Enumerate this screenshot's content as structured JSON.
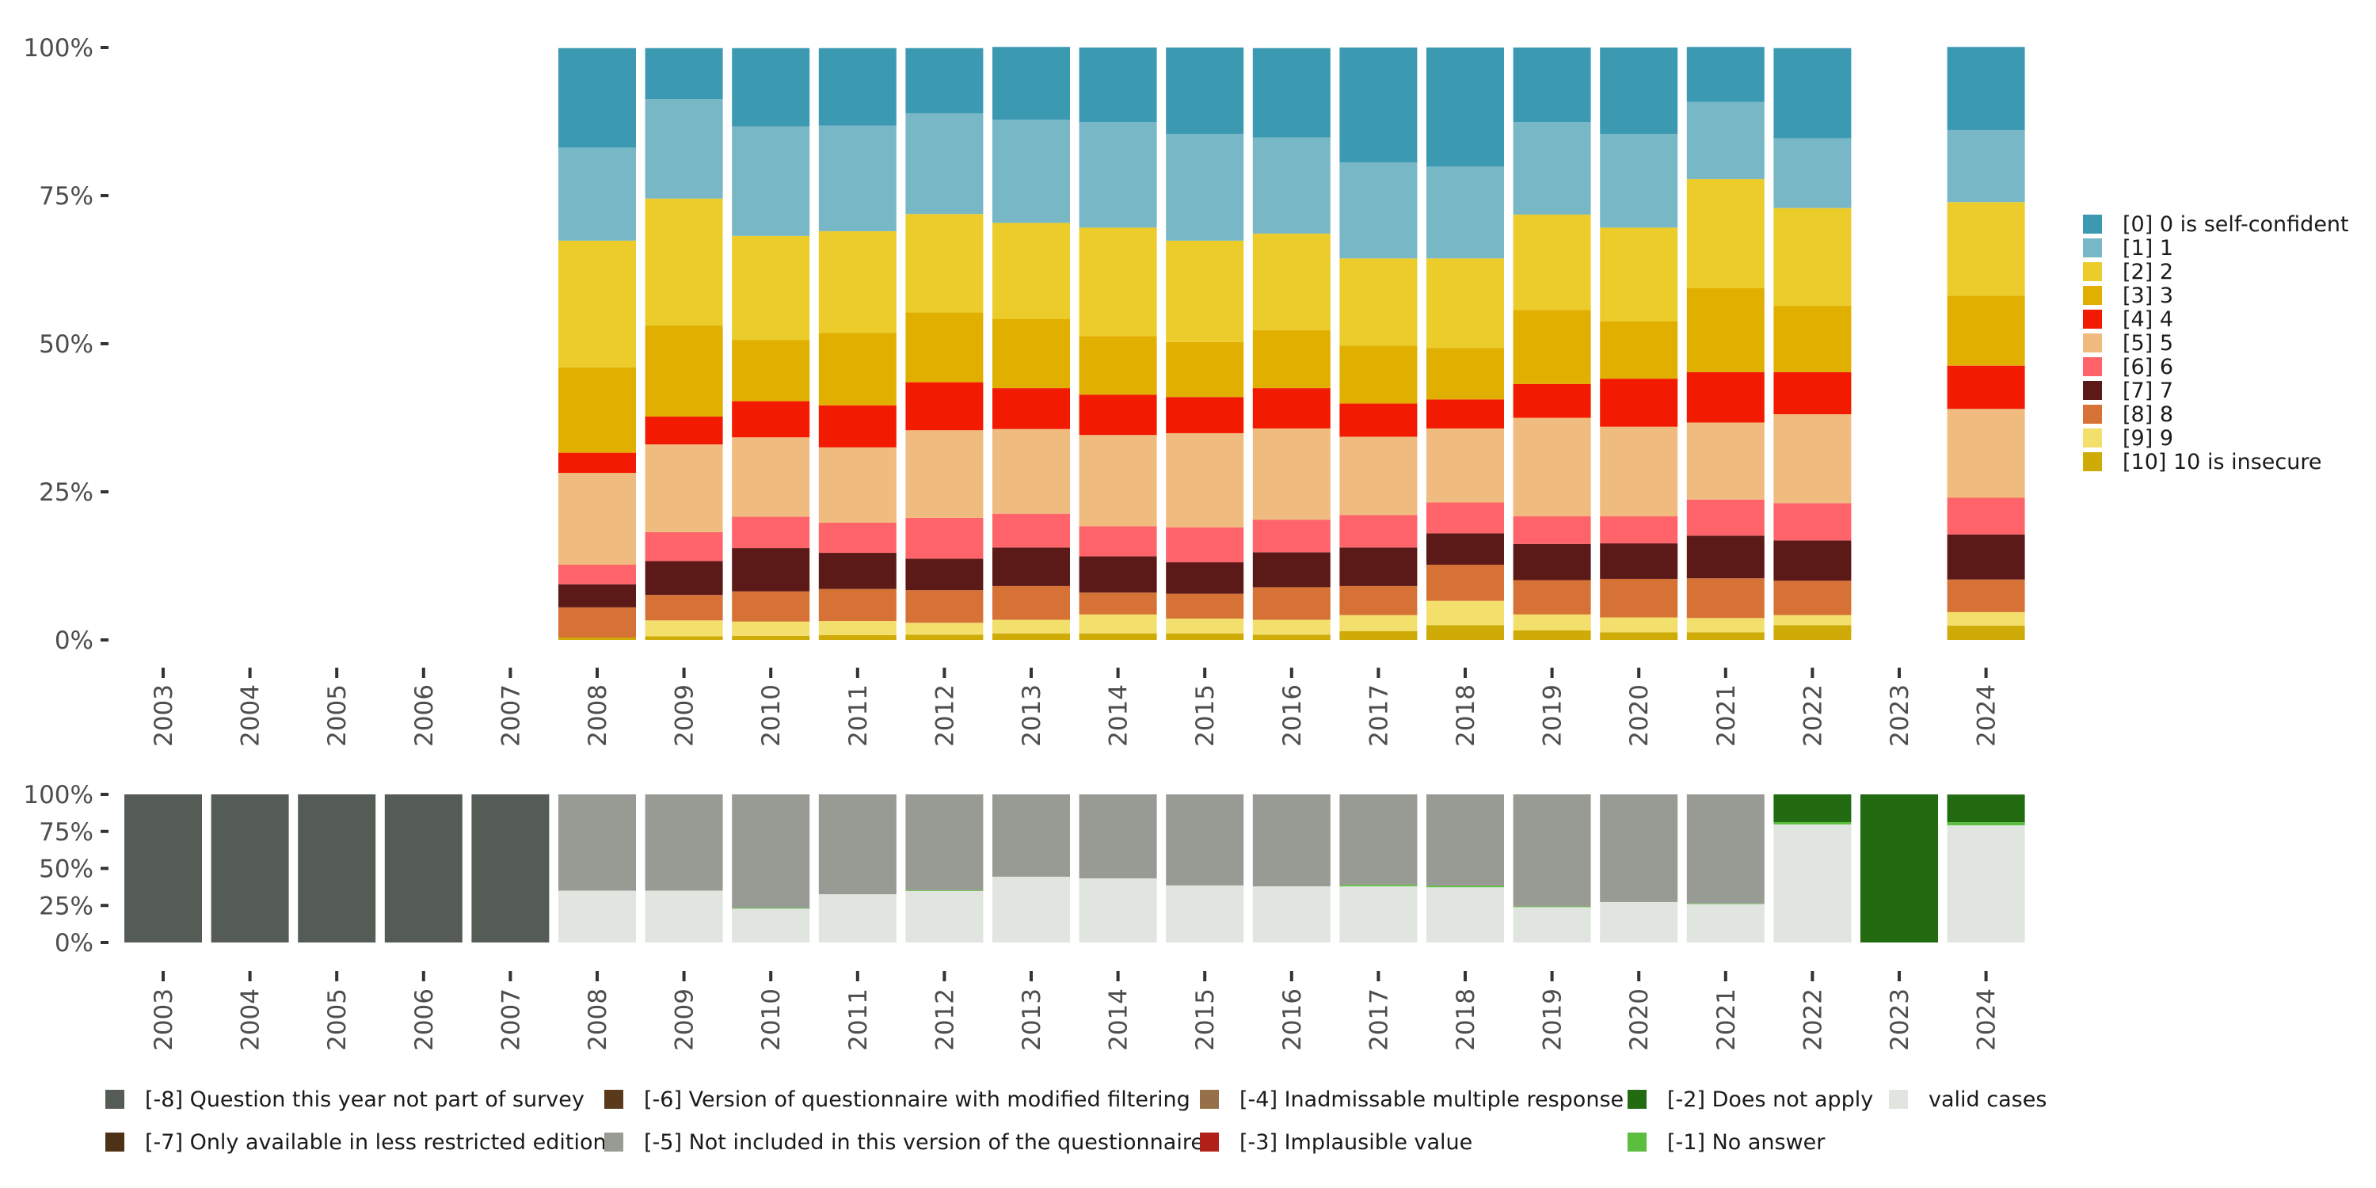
{
  "chart_data": [
    {
      "type": "bar",
      "stacked": true,
      "title": "",
      "xlabel": "",
      "ylabel": "",
      "ylim": [
        0,
        100
      ],
      "y_ticks": [
        "0%",
        "25%",
        "50%",
        "75%",
        "100%"
      ],
      "categories": [
        "2003",
        "2004",
        "2005",
        "2006",
        "2007",
        "2008",
        "2009",
        "2010",
        "2011",
        "2012",
        "2013",
        "2014",
        "2015",
        "2016",
        "2017",
        "2018",
        "2019",
        "2020",
        "2021",
        "2022",
        "2023",
        "2024"
      ],
      "legend_position": "right",
      "series": [
        {
          "name": "[0] 0 is self-confident",
          "color": "#3C99B2",
          "values": [
            null,
            null,
            null,
            null,
            null,
            16.8,
            8.6,
            13.2,
            13.1,
            11.0,
            12.3,
            12.6,
            14.6,
            15.1,
            19.4,
            20.1,
            12.6,
            14.6,
            9.3,
            15.2,
            null,
            14.0
          ]
        },
        {
          "name": "[1] 1",
          "color": "#78B7C5",
          "values": [
            null,
            null,
            null,
            null,
            null,
            15.7,
            16.8,
            18.5,
            17.8,
            17.0,
            17.4,
            17.8,
            18.0,
            16.2,
            16.2,
            15.5,
            15.6,
            15.8,
            13.0,
            11.8,
            null,
            12.2
          ]
        },
        {
          "name": "[2] 2",
          "color": "#EBCC2A",
          "values": [
            null,
            null,
            null,
            null,
            null,
            21.4,
            21.4,
            17.6,
            17.2,
            16.6,
            16.2,
            18.3,
            17.1,
            16.3,
            14.7,
            15.1,
            16.1,
            15.8,
            18.4,
            16.5,
            null,
            15.8
          ]
        },
        {
          "name": "[3] 3",
          "color": "#E1AF00",
          "values": [
            null,
            null,
            null,
            null,
            null,
            14.4,
            15.4,
            10.3,
            12.2,
            11.8,
            11.7,
            9.9,
            9.3,
            9.8,
            9.8,
            8.7,
            12.5,
            9.7,
            14.2,
            11.2,
            null,
            11.8
          ]
        },
        {
          "name": "[4] 4",
          "color": "#F21A00",
          "values": [
            null,
            null,
            null,
            null,
            null,
            3.4,
            4.7,
            6.1,
            7.1,
            8.1,
            6.9,
            6.8,
            6.1,
            6.8,
            5.6,
            4.9,
            5.7,
            8.1,
            8.5,
            7.1,
            null,
            7.3
          ]
        },
        {
          "name": "[5] 5",
          "color": "#F0BB7E",
          "values": [
            null,
            null,
            null,
            null,
            null,
            15.5,
            14.8,
            13.4,
            12.7,
            14.8,
            14.3,
            15.4,
            15.9,
            15.4,
            13.2,
            12.5,
            16.6,
            15.1,
            13.0,
            15.0,
            null,
            15.0
          ]
        },
        {
          "name": "[6] 6",
          "color": "#FE6469",
          "values": [
            null,
            null,
            null,
            null,
            null,
            3.3,
            4.9,
            5.3,
            5.1,
            6.9,
            5.7,
            5.1,
            5.9,
            5.5,
            5.5,
            5.2,
            4.7,
            4.6,
            6.1,
            6.3,
            null,
            6.2
          ]
        },
        {
          "name": "[7] 7",
          "color": "#5B1A18",
          "values": [
            null,
            null,
            null,
            null,
            null,
            3.9,
            5.7,
            7.3,
            6.1,
            5.3,
            6.5,
            6.1,
            5.3,
            5.9,
            6.5,
            5.3,
            6.1,
            6.0,
            7.2,
            6.8,
            null,
            7.6
          ]
        },
        {
          "name": "[8] 8",
          "color": "#D67236",
          "values": [
            null,
            null,
            null,
            null,
            null,
            5.1,
            4.3,
            5.1,
            5.4,
            5.5,
            5.7,
            3.7,
            4.2,
            5.5,
            4.9,
            6.1,
            5.8,
            6.5,
            6.7,
            5.8,
            null,
            5.5
          ]
        },
        {
          "name": "[9] 9",
          "color": "#F3DF6C",
          "values": [
            null,
            null,
            null,
            null,
            null,
            0.0,
            2.7,
            2.4,
            2.4,
            2.0,
            2.3,
            3.2,
            2.5,
            2.5,
            2.7,
            4.1,
            2.7,
            2.5,
            2.4,
            1.7,
            null,
            2.3
          ]
        },
        {
          "name": "[10] 10 is insecure",
          "color": "#CEAB07",
          "values": [
            null,
            null,
            null,
            null,
            null,
            0.4,
            0.6,
            0.7,
            0.8,
            0.9,
            1.1,
            1.1,
            1.1,
            0.9,
            1.5,
            2.5,
            1.6,
            1.3,
            1.3,
            2.5,
            null,
            2.4
          ]
        }
      ]
    },
    {
      "type": "bar",
      "stacked": true,
      "title": "",
      "xlabel": "",
      "ylabel": "",
      "ylim": [
        0,
        100
      ],
      "y_ticks": [
        "0%",
        "25%",
        "50%",
        "75%",
        "100%"
      ],
      "categories": [
        "2003",
        "2004",
        "2005",
        "2006",
        "2007",
        "2008",
        "2009",
        "2010",
        "2011",
        "2012",
        "2013",
        "2014",
        "2015",
        "2016",
        "2017",
        "2018",
        "2019",
        "2020",
        "2021",
        "2022",
        "2023",
        "2024"
      ],
      "legend_position": "bottom",
      "series": [
        {
          "name": "valid cases",
          "color": "#E0E5E0",
          "values": [
            0,
            0,
            0,
            0,
            0,
            35.0,
            35.0,
            23.0,
            32.6,
            35.0,
            44.4,
            43.3,
            38.5,
            37.9,
            37.9,
            37.3,
            24.0,
            27.3,
            26.0,
            79.7,
            0,
            79.1
          ]
        },
        {
          "name": "[-1] No answer",
          "color": "#5BBE3E",
          "values": [
            0,
            0,
            0,
            0,
            0,
            0,
            0,
            0.3,
            0,
            0.3,
            0,
            0,
            0,
            0,
            1.0,
            1.0,
            0.3,
            0,
            0.4,
            1.6,
            0,
            2.1
          ]
        },
        {
          "name": "[-2] Does not apply",
          "color": "#226B11",
          "values": [
            0,
            0,
            0,
            0,
            0,
            0,
            0,
            0,
            0,
            0,
            0,
            0,
            0,
            0,
            0,
            0,
            0,
            0,
            0,
            18.7,
            100,
            18.7
          ]
        },
        {
          "name": "[-3] Implausible value",
          "color": "#B2201A",
          "values": [
            0,
            0,
            0,
            0,
            0,
            0,
            0,
            0,
            0,
            0,
            0,
            0,
            0,
            0,
            0,
            0,
            0,
            0,
            0,
            0,
            0,
            0
          ]
        },
        {
          "name": "[-4] Inadmissable multiple response",
          "color": "#957049",
          "values": [
            0,
            0,
            0,
            0,
            0,
            0,
            0,
            0,
            0,
            0,
            0,
            0,
            0,
            0,
            0,
            0,
            0,
            0,
            0,
            0,
            0,
            0
          ]
        },
        {
          "name": "[-5] Not included in this version of the questionnaire",
          "color": "#979B94",
          "values": [
            0,
            0,
            0,
            0,
            0,
            65.0,
            65.0,
            76.7,
            67.4,
            64.7,
            55.6,
            56.7,
            61.5,
            62.1,
            61.1,
            61.7,
            75.7,
            72.7,
            73.6,
            0,
            0,
            0
          ]
        },
        {
          "name": "[-6] Version of questionnaire with modified filtering",
          "color": "#5A3A1A",
          "values": [
            0,
            0,
            0,
            0,
            0,
            0,
            0,
            0,
            0,
            0,
            0,
            0,
            0,
            0,
            0,
            0,
            0,
            0,
            0,
            0,
            0,
            0
          ]
        },
        {
          "name": "[-7] Only available in less restricted edition",
          "color": "#4E3218",
          "values": [
            0,
            0,
            0,
            0,
            0,
            0,
            0,
            0,
            0,
            0,
            0,
            0,
            0,
            0,
            0,
            0,
            0,
            0,
            0,
            0,
            0,
            0
          ]
        },
        {
          "name": "[-8] Question this year not part of survey",
          "color": "#555B55",
          "values": [
            100,
            100,
            100,
            100,
            100,
            0,
            0,
            0,
            0,
            0,
            0,
            0,
            0,
            0,
            0,
            0,
            0,
            0,
            0,
            0,
            0,
            0
          ]
        }
      ],
      "legend_layout": [
        [
          "[-8] Question this year not part of survey",
          "[-7] Only available in less restricted edition"
        ],
        [
          "[-6] Version of questionnaire with modified filtering",
          "[-5] Not included in this version of the questionnaire"
        ],
        [
          "[-4] Inadmissable multiple response",
          "[-3] Implausible value"
        ],
        [
          "[-2] Does not apply",
          "[-1] No answer"
        ],
        [
          "valid cases"
        ]
      ]
    }
  ]
}
